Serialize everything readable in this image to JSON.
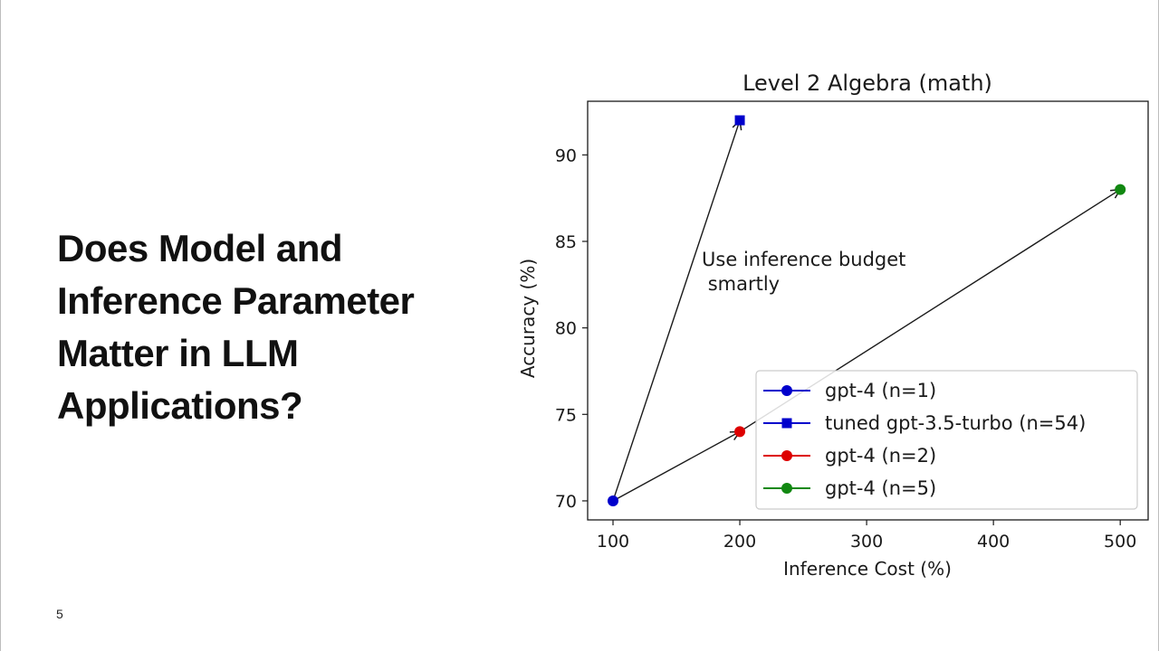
{
  "slide": {
    "heading_lines": [
      "Does Model and",
      "Inference Parameter",
      "Matter in LLM",
      "Applications?"
    ],
    "page_number": "5"
  },
  "chart_data": {
    "type": "scatter",
    "title": "Level 2 Algebra (math)",
    "xlabel": "Inference Cost (%)",
    "ylabel": "Accuracy (%)",
    "xlim": [
      80,
      522
    ],
    "ylim": [
      68.9,
      93.1
    ],
    "x_ticks": [
      100,
      200,
      300,
      400,
      500
    ],
    "y_ticks": [
      70,
      75,
      80,
      85,
      90
    ],
    "grid": false,
    "legend_position": "lower-right",
    "series": [
      {
        "name": "gpt-4 (n=1)",
        "marker": "circle",
        "color": "#0000cc",
        "x": [
          100
        ],
        "y": [
          70
        ]
      },
      {
        "name": "tuned gpt-3.5-turbo (n=54)",
        "marker": "square",
        "color": "#0000cc",
        "x": [
          200
        ],
        "y": [
          92
        ]
      },
      {
        "name": "gpt-4 (n=2)",
        "marker": "circle",
        "color": "#dd0000",
        "x": [
          200
        ],
        "y": [
          74
        ]
      },
      {
        "name": "gpt-4 (n=5)",
        "marker": "circle",
        "color": "#118811",
        "x": [
          500
        ],
        "y": [
          88
        ]
      }
    ],
    "arrows": [
      {
        "from": [
          100,
          70
        ],
        "to": [
          200,
          92
        ]
      },
      {
        "from": [
          100,
          70
        ],
        "to": [
          200,
          74
        ]
      },
      {
        "from": [
          200,
          74
        ],
        "to": [
          500,
          88
        ]
      }
    ],
    "annotation": {
      "lines": [
        "Use inference budget",
        " smartly"
      ],
      "x": 170,
      "y": 84
    }
  }
}
